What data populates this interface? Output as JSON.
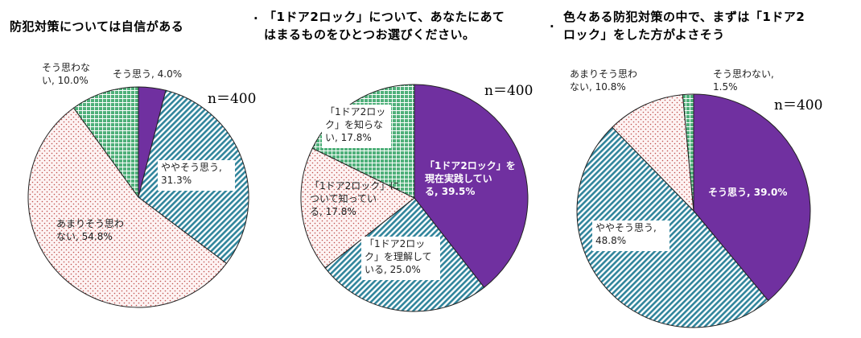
{
  "chart_data": [
    {
      "type": "pie",
      "title": "防犯対策については自信がある",
      "n_label": "n＝400",
      "slices": [
        {
          "label": "そう思う",
          "value": 4.0,
          "display": "4.0%",
          "label_lines": [
            "そう思う, 4.0%"
          ]
        },
        {
          "label": "ややそう思う",
          "value": 31.3,
          "display": "31.3%",
          "label_lines": [
            "ややそう思う,",
            "31.3%"
          ]
        },
        {
          "label": "あまりそう思わない",
          "value": 54.8,
          "display": "54.8%",
          "label_lines": [
            "あまりそう思わ",
            "ない, 54.8%"
          ]
        },
        {
          "label": "そう思わない",
          "value": 10.0,
          "display": "10.0%",
          "label_lines": [
            "そう思わな",
            "い, 10.0%"
          ]
        }
      ]
    },
    {
      "type": "pie",
      "title": "「1ドア2ロック」について、あなたにあてはまるものをひとつお選びください。",
      "title_lines": [
        "「1ドア2ロック」について、あなたにあて",
        "はまるものをひとつお選びください。"
      ],
      "n_label": "n＝400",
      "slices": [
        {
          "label": "「1ドア2ロック」を現在実践している",
          "value": 39.5,
          "display": "39.5%",
          "label_lines": [
            "「1ドア2ロック」を",
            "現在実践してい",
            "る, 39.5%"
          ]
        },
        {
          "label": "「1ドア2ロック」を理解している",
          "value": 25.0,
          "display": "25.0%",
          "label_lines": [
            "「1ドア2ロッ",
            "ク」を理解して",
            "いる, 25.0%"
          ]
        },
        {
          "label": "「1ドア2ロック」について知っている",
          "value": 17.8,
          "display": "17.8%",
          "label_lines": [
            "「1ドア2ロック」に",
            "ついて知ってい",
            "る, 17.8%"
          ]
        },
        {
          "label": "「1ドア2ロック」を知らない",
          "value": 17.8,
          "display": "17.8%",
          "label_lines": [
            "「1ドア2ロッ",
            "ク」を知らな",
            "い, 17.8%"
          ]
        }
      ]
    },
    {
      "type": "pie",
      "title": "色々ある防犯対策の中で、まずは「1ドア2ロック」をした方がよさそう",
      "title_lines": [
        "色々ある防犯対策の中で、まずは「1ドア2",
        "ロック」をした方がよさそう"
      ],
      "n_label": "n＝400",
      "slices": [
        {
          "label": "そう思う",
          "value": 39.0,
          "display": "39.0%",
          "label_lines": [
            "そう思う, 39.0%"
          ]
        },
        {
          "label": "ややそう思う",
          "value": 48.8,
          "display": "48.8%",
          "label_lines": [
            "ややそう思う,",
            "48.8%"
          ]
        },
        {
          "label": "あまりそう思わない",
          "value": 10.8,
          "display": "10.8%",
          "label_lines": [
            "あまりそう思わ",
            "ない, 10.8%"
          ]
        },
        {
          "label": "そう思わない",
          "value": 1.5,
          "display": "1.5%",
          "label_lines": [
            "そう思わない,",
            "1.5%"
          ]
        }
      ]
    }
  ],
  "colors": {
    "purple": "#7030a0",
    "teal": "#31859c",
    "dots": "#c0504d",
    "green": "#4fb07a",
    "edge": "#222222"
  },
  "separator": "."
}
